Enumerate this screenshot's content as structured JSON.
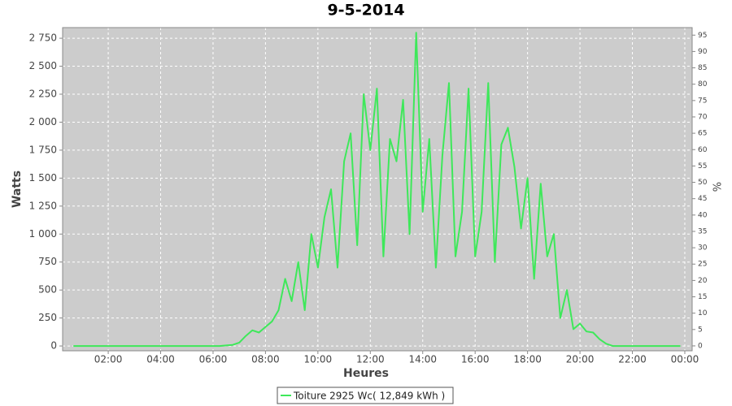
{
  "chart_data": {
    "type": "line",
    "title": "9-5-2014",
    "x_label": "Heures",
    "y_label": "Watts",
    "y2_label": "%",
    "x": [
      0.67,
      6,
      6.25,
      6.5,
      6.75,
      7,
      7.25,
      7.5,
      7.75,
      8,
      8.25,
      8.5,
      8.75,
      9,
      9.25,
      9.5,
      9.75,
      10,
      10.25,
      10.5,
      10.75,
      11,
      11.25,
      11.5,
      11.75,
      12,
      12.25,
      12.5,
      12.75,
      13,
      13.25,
      13.5,
      13.75,
      14,
      14.25,
      14.5,
      14.75,
      15,
      15.25,
      15.5,
      15.75,
      16,
      16.25,
      16.5,
      16.75,
      17,
      17.25,
      17.5,
      17.75,
      18,
      18.25,
      18.5,
      18.75,
      19,
      19.25,
      19.5,
      19.75,
      20,
      20.25,
      20.5,
      20.75,
      21,
      21.25,
      23.83
    ],
    "series": [
      {
        "name": "Toiture 2925 Wc( 12,849 kWh )",
        "color": "#3ee85a",
        "values": [
          0,
          0,
          0,
          5,
          10,
          30,
          90,
          140,
          120,
          170,
          220,
          320,
          600,
          400,
          750,
          320,
          1000,
          700,
          1150,
          1400,
          700,
          1650,
          1900,
          900,
          2250,
          1750,
          2300,
          800,
          1850,
          1650,
          2200,
          1000,
          2800,
          1200,
          1850,
          700,
          1700,
          2350,
          800,
          1200,
          2300,
          800,
          1200,
          2350,
          750,
          1800,
          1950,
          1600,
          1050,
          1500,
          600,
          1450,
          800,
          1000,
          250,
          500,
          150,
          200,
          130,
          120,
          60,
          20,
          0,
          0
        ]
      }
    ],
    "xlim": [
      0.26,
      24.28
    ],
    "xticks": [
      {
        "value": 2,
        "label": "02:00"
      },
      {
        "value": 4,
        "label": "04:00"
      },
      {
        "value": 6,
        "label": "06:00"
      },
      {
        "value": 8,
        "label": "08:00"
      },
      {
        "value": 10,
        "label": "10:00"
      },
      {
        "value": 12,
        "label": "12:00"
      },
      {
        "value": 14,
        "label": "14:00"
      },
      {
        "value": 16,
        "label": "16:00"
      },
      {
        "value": 18,
        "label": "18:00"
      },
      {
        "value": 20,
        "label": "20:00"
      },
      {
        "value": 22,
        "label": "22:00"
      },
      {
        "value": 24,
        "label": "00:00"
      }
    ],
    "ylim": [
      -43,
      2845
    ],
    "yticks": [
      0,
      250,
      500,
      750,
      {
        "value": 1000,
        "label": "1 000"
      },
      {
        "value": 1250,
        "label": "1 250"
      },
      {
        "value": 1500,
        "label": "1 500"
      },
      {
        "value": 1750,
        "label": "1 750"
      },
      {
        "value": 2000,
        "label": "2 000"
      },
      {
        "value": 2250,
        "label": "2 250"
      },
      {
        "value": 2500,
        "label": "2 500"
      },
      {
        "value": 2750,
        "label": "2 750"
      }
    ],
    "y2lim": [
      -1.5,
      97.3
    ],
    "y2ticks": [
      0,
      5,
      10,
      15,
      20,
      25,
      30,
      35,
      40,
      45,
      50,
      55,
      60,
      65,
      70,
      75,
      80,
      85,
      90,
      95
    ],
    "grid": true
  }
}
